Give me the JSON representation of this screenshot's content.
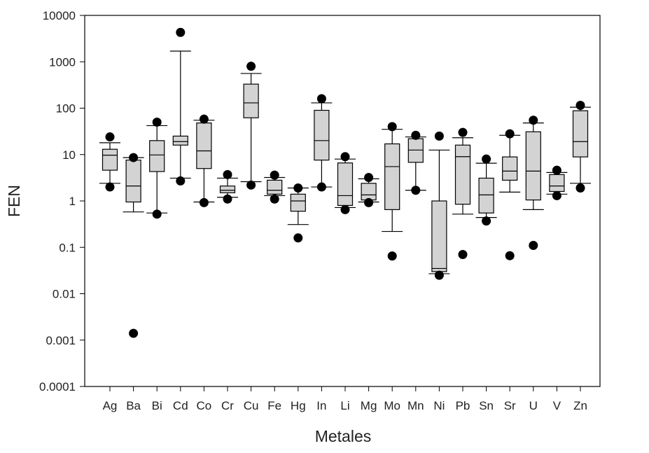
{
  "chart_data": {
    "type": "box",
    "xlabel": "Metales",
    "ylabel": "FEN",
    "yscale": "log",
    "ylim": [
      0.0001,
      10000
    ],
    "yticks": [
      "0.0001",
      "0.001",
      "0.01",
      "0.1",
      "1",
      "10",
      "100",
      "1000",
      "10000"
    ],
    "grid": false,
    "colors": {
      "box_fill": "#d3d3d3",
      "outlier": "#000000",
      "axis": "#000000"
    },
    "categories": [
      "Ag",
      "Ba",
      "Bi",
      "Cd",
      "Co",
      "Cr",
      "Cu",
      "Fe",
      "Hg",
      "In",
      "Li",
      "Mg",
      "Mo",
      "Mn",
      "Ni",
      "Pb",
      "Sn",
      "Sr",
      "U",
      "V",
      "Zn"
    ],
    "boxes": [
      {
        "name": "Ag",
        "whisker_low": 2.4,
        "q1": 4.6,
        "median": 9.7,
        "q3": 13,
        "whisker_high": 18,
        "outliers": [
          2.0,
          24
        ]
      },
      {
        "name": "Ba",
        "whisker_low": 0.58,
        "q1": 0.95,
        "median": 2.1,
        "q3": 7.6,
        "whisker_high": 8.6,
        "outliers": [
          0.0014,
          8.6
        ]
      },
      {
        "name": "Bi",
        "whisker_low": 0.55,
        "q1": 4.3,
        "median": 9.8,
        "q3": 20,
        "whisker_high": 42,
        "outliers": [
          0.52,
          50
        ]
      },
      {
        "name": "Cd",
        "whisker_low": 3.1,
        "q1": 16,
        "median": 19,
        "q3": 25,
        "whisker_high": 1700,
        "outliers": [
          2.7,
          4300
        ]
      },
      {
        "name": "Co",
        "whisker_low": 0.95,
        "q1": 5.0,
        "median": 12,
        "q3": 48,
        "whisker_high": 55,
        "outliers": [
          0.92,
          58
        ]
      },
      {
        "name": "Cr",
        "whisker_low": 1.2,
        "q1": 1.5,
        "median": 1.7,
        "q3": 2.1,
        "whisker_high": 3.1,
        "outliers": [
          1.1,
          3.7
        ]
      },
      {
        "name": "Cu",
        "whisker_low": 2.6,
        "q1": 62,
        "median": 130,
        "q3": 330,
        "whisker_high": 560,
        "outliers": [
          2.2,
          800
        ]
      },
      {
        "name": "Fe",
        "whisker_low": 1.3,
        "q1": 1.4,
        "median": 1.7,
        "q3": 2.8,
        "whisker_high": 3.2,
        "outliers": [
          1.1,
          3.6
        ]
      },
      {
        "name": "Hg",
        "whisker_low": 0.31,
        "q1": 0.6,
        "median": 1.0,
        "q3": 1.4,
        "whisker_high": 1.9,
        "outliers": [
          0.16,
          1.9
        ]
      },
      {
        "name": "In",
        "whisker_low": 2.0,
        "q1": 7.6,
        "median": 20,
        "q3": 90,
        "whisker_high": 130,
        "outliers": [
          2.0,
          160
        ]
      },
      {
        "name": "Li",
        "whisker_low": 0.72,
        "q1": 0.8,
        "median": 1.3,
        "q3": 6.6,
        "whisker_high": 8.0,
        "outliers": [
          0.65,
          9.0
        ]
      },
      {
        "name": "Mg",
        "whisker_low": 0.95,
        "q1": 1.05,
        "median": 1.35,
        "q3": 2.4,
        "whisker_high": 3.0,
        "outliers": [
          0.92,
          3.2
        ]
      },
      {
        "name": "Mo",
        "whisker_low": 0.22,
        "q1": 0.65,
        "median": 5.5,
        "q3": 17,
        "whisker_high": 35,
        "outliers": [
          0.065,
          40
        ]
      },
      {
        "name": "Mn",
        "whisker_low": 1.7,
        "q1": 6.8,
        "median": 12.5,
        "q3": 22,
        "whisker_high": 24,
        "outliers": [
          1.7,
          26
        ]
      },
      {
        "name": "Ni",
        "whisker_low": 0.027,
        "q1": 0.03,
        "median": 0.035,
        "q3": 1.0,
        "whisker_high": 12.5,
        "outliers": [
          0.025,
          25
        ]
      },
      {
        "name": "Pb",
        "whisker_low": 0.52,
        "q1": 0.85,
        "median": 9.0,
        "q3": 16,
        "whisker_high": 23,
        "outliers": [
          0.07,
          30
        ]
      },
      {
        "name": "Sn",
        "whisker_low": 0.44,
        "q1": 0.55,
        "median": 1.35,
        "q3": 3.1,
        "whisker_high": 6.5,
        "outliers": [
          0.37,
          8.0
        ]
      },
      {
        "name": "Sr",
        "whisker_low": 1.55,
        "q1": 2.8,
        "median": 4.4,
        "q3": 8.9,
        "whisker_high": 26,
        "outliers": [
          0.066,
          28
        ]
      },
      {
        "name": "U",
        "whisker_low": 0.65,
        "q1": 1.05,
        "median": 4.4,
        "q3": 31,
        "whisker_high": 48,
        "outliers": [
          0.11,
          55
        ]
      },
      {
        "name": "V",
        "whisker_low": 1.4,
        "q1": 1.6,
        "median": 2.1,
        "q3": 3.7,
        "whisker_high": 4.1,
        "outliers": [
          1.3,
          4.6
        ]
      },
      {
        "name": "Zn",
        "whisker_low": 2.4,
        "q1": 8.9,
        "median": 19,
        "q3": 88,
        "whisker_high": 105,
        "outliers": [
          1.9,
          115
        ]
      }
    ]
  }
}
